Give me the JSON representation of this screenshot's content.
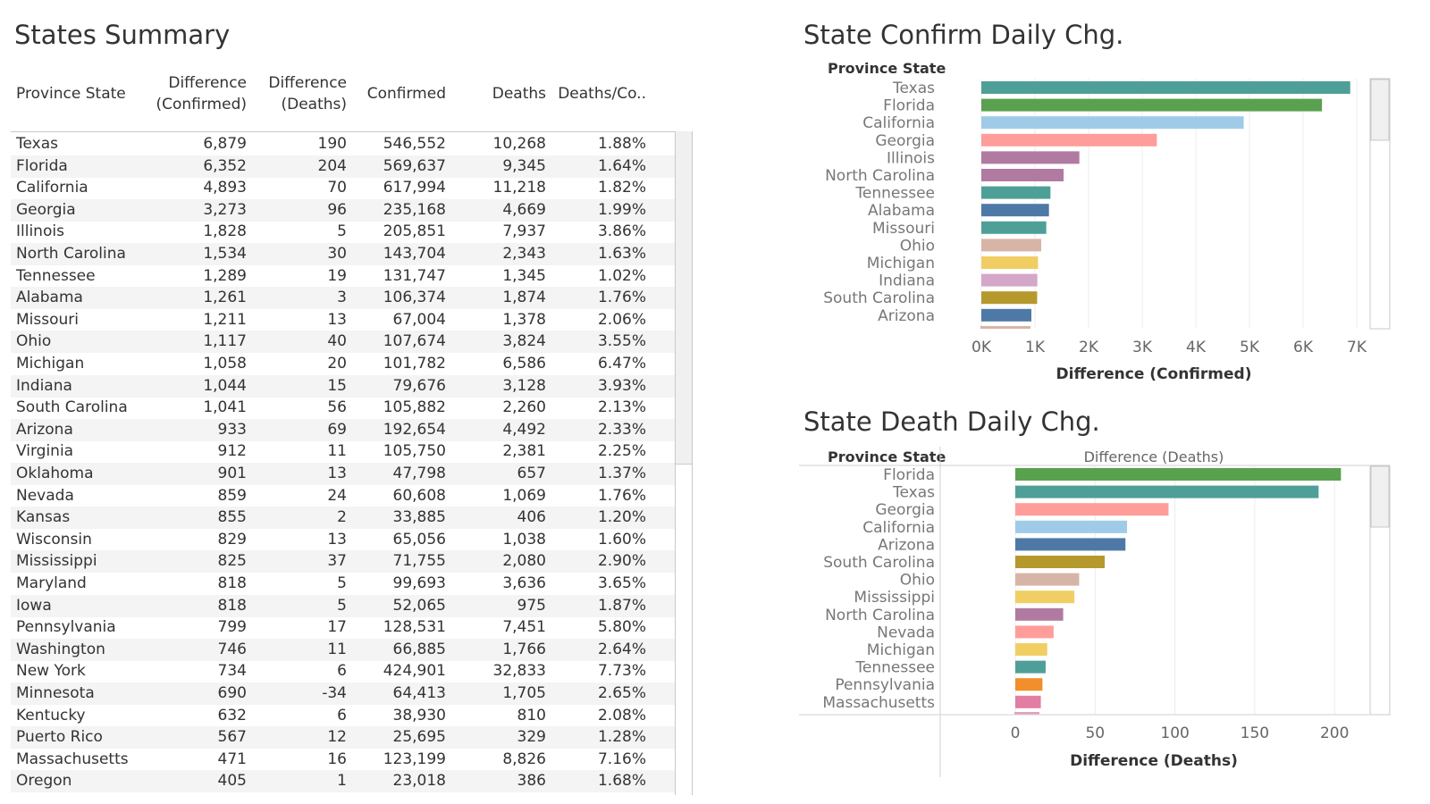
{
  "titles": {
    "summary": "States Summary",
    "confirm": "State Confirm Daily Chg.",
    "death": "State Death Daily Chg."
  },
  "table": {
    "headers": {
      "state": "Province State",
      "diff_confirmed_1": "Difference",
      "diff_confirmed_2": "(Confirmed)",
      "diff_deaths_1": "Difference",
      "diff_deaths_2": "(Deaths)",
      "confirmed": "Confirmed",
      "deaths": "Deaths",
      "ratio": "Deaths/Co.."
    },
    "rows": [
      [
        "Texas",
        "6,879",
        "190",
        "546,552",
        "10,268",
        "1.88%"
      ],
      [
        "Florida",
        "6,352",
        "204",
        "569,637",
        "9,345",
        "1.64%"
      ],
      [
        "California",
        "4,893",
        "70",
        "617,994",
        "11,218",
        "1.82%"
      ],
      [
        "Georgia",
        "3,273",
        "96",
        "235,168",
        "4,669",
        "1.99%"
      ],
      [
        "Illinois",
        "1,828",
        "5",
        "205,851",
        "7,937",
        "3.86%"
      ],
      [
        "North Carolina",
        "1,534",
        "30",
        "143,704",
        "2,343",
        "1.63%"
      ],
      [
        "Tennessee",
        "1,289",
        "19",
        "131,747",
        "1,345",
        "1.02%"
      ],
      [
        "Alabama",
        "1,261",
        "3",
        "106,374",
        "1,874",
        "1.76%"
      ],
      [
        "Missouri",
        "1,211",
        "13",
        "67,004",
        "1,378",
        "2.06%"
      ],
      [
        "Ohio",
        "1,117",
        "40",
        "107,674",
        "3,824",
        "3.55%"
      ],
      [
        "Michigan",
        "1,058",
        "20",
        "101,782",
        "6,586",
        "6.47%"
      ],
      [
        "Indiana",
        "1,044",
        "15",
        "79,676",
        "3,128",
        "3.93%"
      ],
      [
        "South Carolina",
        "1,041",
        "56",
        "105,882",
        "2,260",
        "2.13%"
      ],
      [
        "Arizona",
        "933",
        "69",
        "192,654",
        "4,492",
        "2.33%"
      ],
      [
        "Virginia",
        "912",
        "11",
        "105,750",
        "2,381",
        "2.25%"
      ],
      [
        "Oklahoma",
        "901",
        "13",
        "47,798",
        "657",
        "1.37%"
      ],
      [
        "Nevada",
        "859",
        "24",
        "60,608",
        "1,069",
        "1.76%"
      ],
      [
        "Kansas",
        "855",
        "2",
        "33,885",
        "406",
        "1.20%"
      ],
      [
        "Wisconsin",
        "829",
        "13",
        "65,056",
        "1,038",
        "1.60%"
      ],
      [
        "Mississippi",
        "825",
        "37",
        "71,755",
        "2,080",
        "2.90%"
      ],
      [
        "Maryland",
        "818",
        "5",
        "99,693",
        "3,636",
        "3.65%"
      ],
      [
        "Iowa",
        "818",
        "5",
        "52,065",
        "975",
        "1.87%"
      ],
      [
        "Pennsylvania",
        "799",
        "17",
        "128,531",
        "7,451",
        "5.80%"
      ],
      [
        "Washington",
        "746",
        "11",
        "66,885",
        "1,766",
        "2.64%"
      ],
      [
        "New York",
        "734",
        "6",
        "424,901",
        "32,833",
        "7.73%"
      ],
      [
        "Minnesota",
        "690",
        "-34",
        "64,413",
        "1,705",
        "2.65%"
      ],
      [
        "Kentucky",
        "632",
        "6",
        "38,930",
        "810",
        "2.08%"
      ],
      [
        "Puerto Rico",
        "567",
        "12",
        "25,695",
        "329",
        "1.28%"
      ],
      [
        "Massachusetts",
        "471",
        "16",
        "123,199",
        "8,826",
        "7.16%"
      ],
      [
        "Oregon",
        "405",
        "1",
        "23,018",
        "386",
        "1.68%"
      ]
    ]
  },
  "chart_data": [
    {
      "type": "bar",
      "orientation": "horizontal",
      "title": "State Confirm Daily Chg.",
      "row_header": "Province State",
      "xlabel": "Difference (Confirmed)",
      "xlim": [
        0,
        7000
      ],
      "ticks": [
        0,
        1000,
        2000,
        3000,
        4000,
        5000,
        6000,
        7000
      ],
      "tick_labels": [
        "0K",
        "1K",
        "2K",
        "3K",
        "4K",
        "5K",
        "6K",
        "7K"
      ],
      "grid": true,
      "categories": [
        "Texas",
        "Florida",
        "California",
        "Georgia",
        "Illinois",
        "North Carolina",
        "Tennessee",
        "Alabama",
        "Missouri",
        "Ohio",
        "Michigan",
        "Indiana",
        "South Carolina",
        "Arizona"
      ],
      "values": [
        6879,
        6352,
        4893,
        3273,
        1828,
        1534,
        1289,
        1261,
        1211,
        1117,
        1058,
        1044,
        1041,
        933
      ],
      "colors": [
        "#4e9f97",
        "#59a14f",
        "#a0cbe8",
        "#ff9d9a",
        "#b07aa1",
        "#b07aa1",
        "#4e9f97",
        "#4e79a7",
        "#4e9f97",
        "#d7b5a6",
        "#f1ce63",
        "#d4a6c8",
        "#b6992d",
        "#4e79a7"
      ],
      "cut_off_color": "#d7b5a6"
    },
    {
      "type": "bar",
      "orientation": "horizontal",
      "title": "State Death Daily Chg.",
      "row_header": "Province State",
      "column_header": "Difference (Deaths)",
      "xlabel": "Difference (Deaths)",
      "xlim": [
        0,
        215
      ],
      "ticks": [
        0,
        50,
        100,
        150,
        200
      ],
      "tick_labels": [
        "0",
        "50",
        "100",
        "150",
        "200"
      ],
      "grid": true,
      "categories": [
        "Florida",
        "Texas",
        "Georgia",
        "California",
        "Arizona",
        "South Carolina",
        "Ohio",
        "Mississippi",
        "North Carolina",
        "Nevada",
        "Michigan",
        "Tennessee",
        "Pennsylvania",
        "Massachusetts"
      ],
      "values": [
        204,
        190,
        96,
        70,
        69,
        56,
        40,
        37,
        30,
        24,
        20,
        19,
        17,
        16
      ],
      "colors": [
        "#59a14f",
        "#4e9f97",
        "#ff9d9a",
        "#a0cbe8",
        "#4e79a7",
        "#b6992d",
        "#d7b5a6",
        "#f1ce63",
        "#b07aa1",
        "#ff9d9a",
        "#f1ce63",
        "#4e9f97",
        "#f28e2b",
        "#e17ea1"
      ],
      "cut_off_color": "#e3a0c0"
    }
  ]
}
